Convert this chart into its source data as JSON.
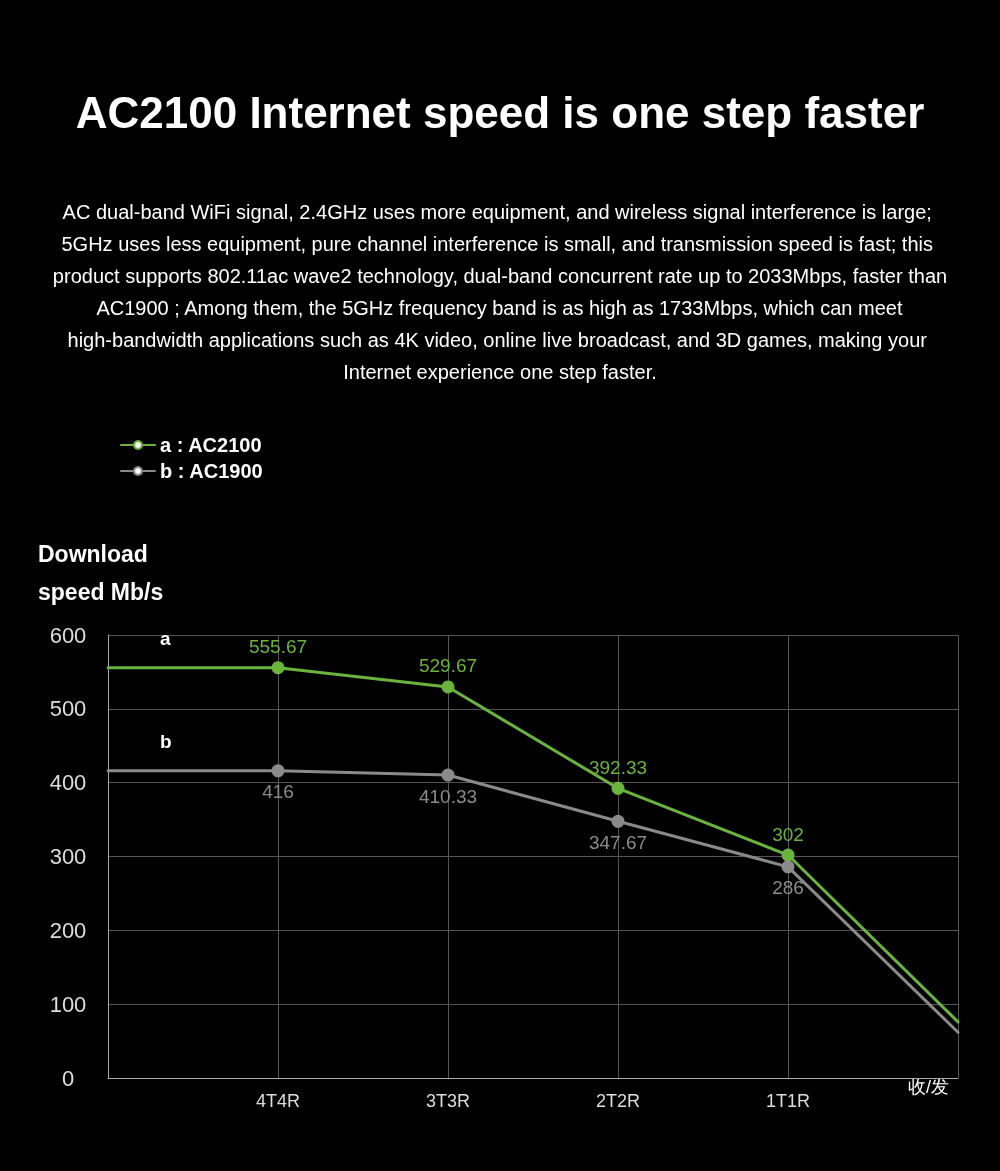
{
  "chart_data": {
    "type": "line",
    "title": "AC2100 Internet speed is one step faster",
    "subtitle": "AC dual-band WiFi signal, 2.4GHz uses more equipment, and wireless signal interference is large; 5GHz uses less equipment, pure channel interference is small, and transmission speed is fast; this product supports 802.11ac wave2 technology, dual-band concurrent rate up to 2033Mbps, faster than AC1900 ; Among them, the 5GHz frequency band is as high as 1733Mbps, which can meet high-bandwidth applications such as 4K video, online live broadcast, and 3D games, making your Internet experience one step faster.",
    "ylabel": "Download speed Mb/s",
    "xlabel": "收/发",
    "categories": [
      null,
      "4T4R",
      "3T3R",
      "2T2R",
      "1T1R",
      null
    ],
    "series": [
      {
        "name": "a : AC2100",
        "color": "#6ab43e",
        "values": [
          555.67,
          555.67,
          529.67,
          392.33,
          302,
          76
        ],
        "value_labels": [
          null,
          "555.67",
          "529.67",
          "392.33",
          "302",
          null
        ]
      },
      {
        "name": "b : AC1900",
        "color": "#8a8a8a",
        "values": [
          416,
          416,
          410.33,
          347.67,
          286,
          62
        ],
        "value_labels": [
          null,
          "416",
          "410.33",
          "347.67",
          "286",
          null
        ]
      }
    ],
    "annotations": [
      "a",
      "b"
    ],
    "ylim": [
      0,
      600
    ],
    "yticks": [
      0,
      100,
      200,
      300,
      400,
      500,
      600
    ],
    "grid": true,
    "legend": "top left",
    "marker": "circle",
    "line_style": "solid"
  }
}
